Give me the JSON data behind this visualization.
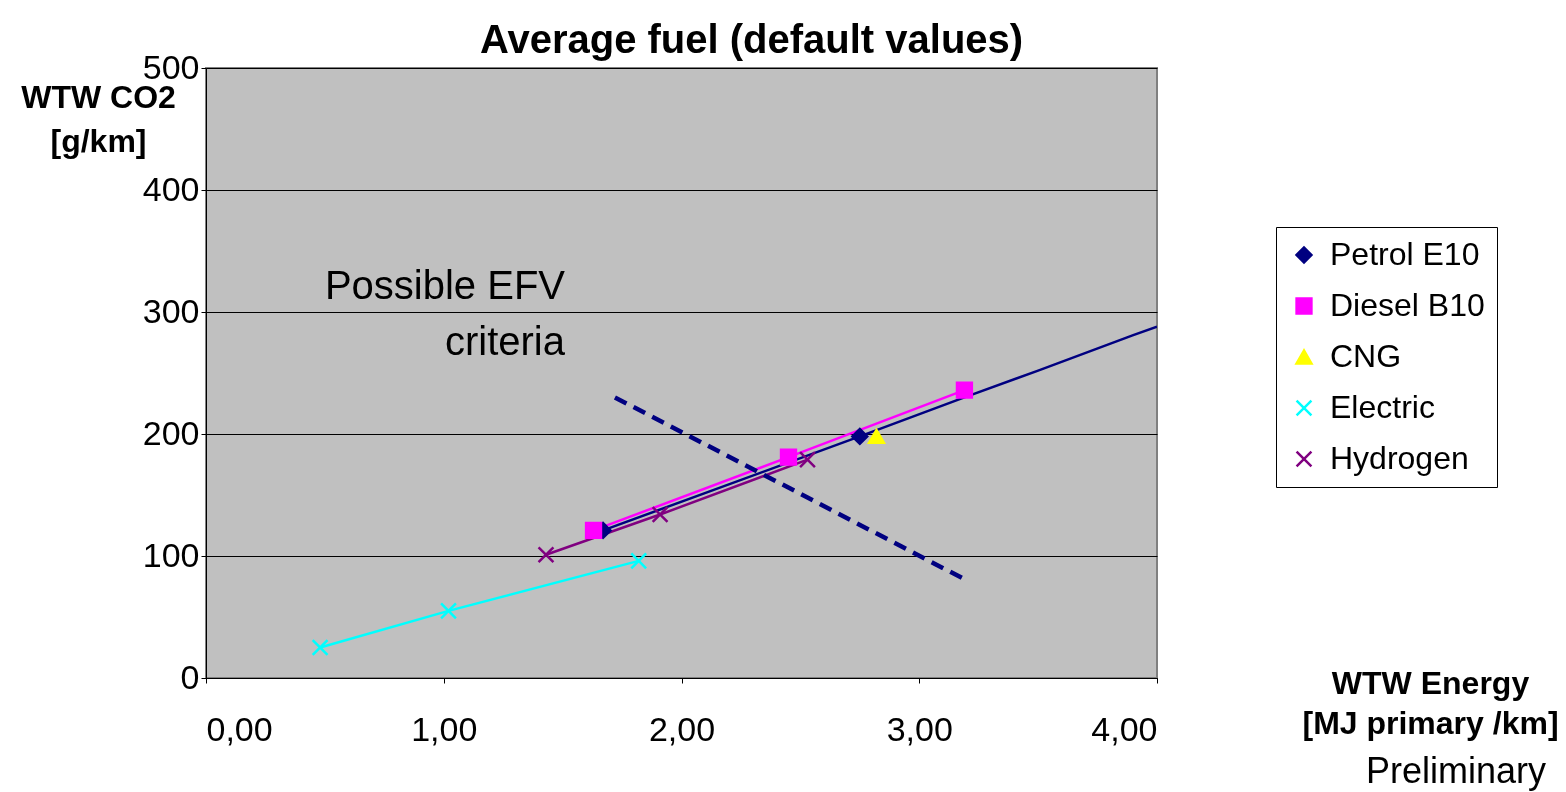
{
  "chart_data": {
    "type": "line",
    "title": "Average fuel (default values)",
    "xlabel": "WTW Energy\n[MJ primary /km]",
    "ylabel": "WTW CO2\n[g/km]",
    "xlim": [
      0,
      4
    ],
    "ylim": [
      0,
      500
    ],
    "xticks": [
      {
        "value": 0,
        "label": "0,00"
      },
      {
        "value": 1,
        "label": "1,00"
      },
      {
        "value": 2,
        "label": "2,00"
      },
      {
        "value": 3,
        "label": "3,00"
      },
      {
        "value": 4,
        "label": "4,00"
      }
    ],
    "yticks": [
      0,
      100,
      200,
      300,
      400,
      500
    ],
    "grid": "y",
    "legend": "right",
    "series": [
      {
        "name": "Petrol E10",
        "color": "#000080",
        "marker": "diamond",
        "x": [
          1.67,
          2.75
        ],
        "values": [
          121,
          198
        ]
      },
      {
        "name": "Diesel B10",
        "color": "#ff00ff",
        "marker": "square",
        "x": [
          1.63,
          2.45,
          3.19
        ],
        "values": [
          121,
          181,
          236
        ]
      },
      {
        "name": "CNG",
        "color": "#ffff00",
        "marker": "triangle",
        "x": [
          2.82
        ],
        "values": [
          198
        ]
      },
      {
        "name": "Electric",
        "color": "#00ffff",
        "marker": "cross",
        "x": [
          0.48,
          1.02,
          1.82
        ],
        "values": [
          25,
          55,
          96
        ]
      },
      {
        "name": "Hydrogen",
        "color": "#800080",
        "marker": "cross",
        "x": [
          1.43,
          1.91,
          2.53
        ],
        "values": [
          101,
          134,
          179
        ]
      },
      {
        "color": "#000080",
        "marker": "none",
        "x": [
          2.75,
          3.19,
          3.5,
          3.9,
          4.0
        ],
        "values": [
          198,
          230,
          252,
          281,
          288
        ]
      },
      {
        "color": "#000080",
        "marker": "none",
        "line_style": "dashed",
        "x": [
          1.72,
          3.18
        ],
        "values": [
          230,
          82
        ]
      }
    ],
    "annotations": [
      "Possible EFV\ncriteria",
      "Preliminary"
    ]
  }
}
